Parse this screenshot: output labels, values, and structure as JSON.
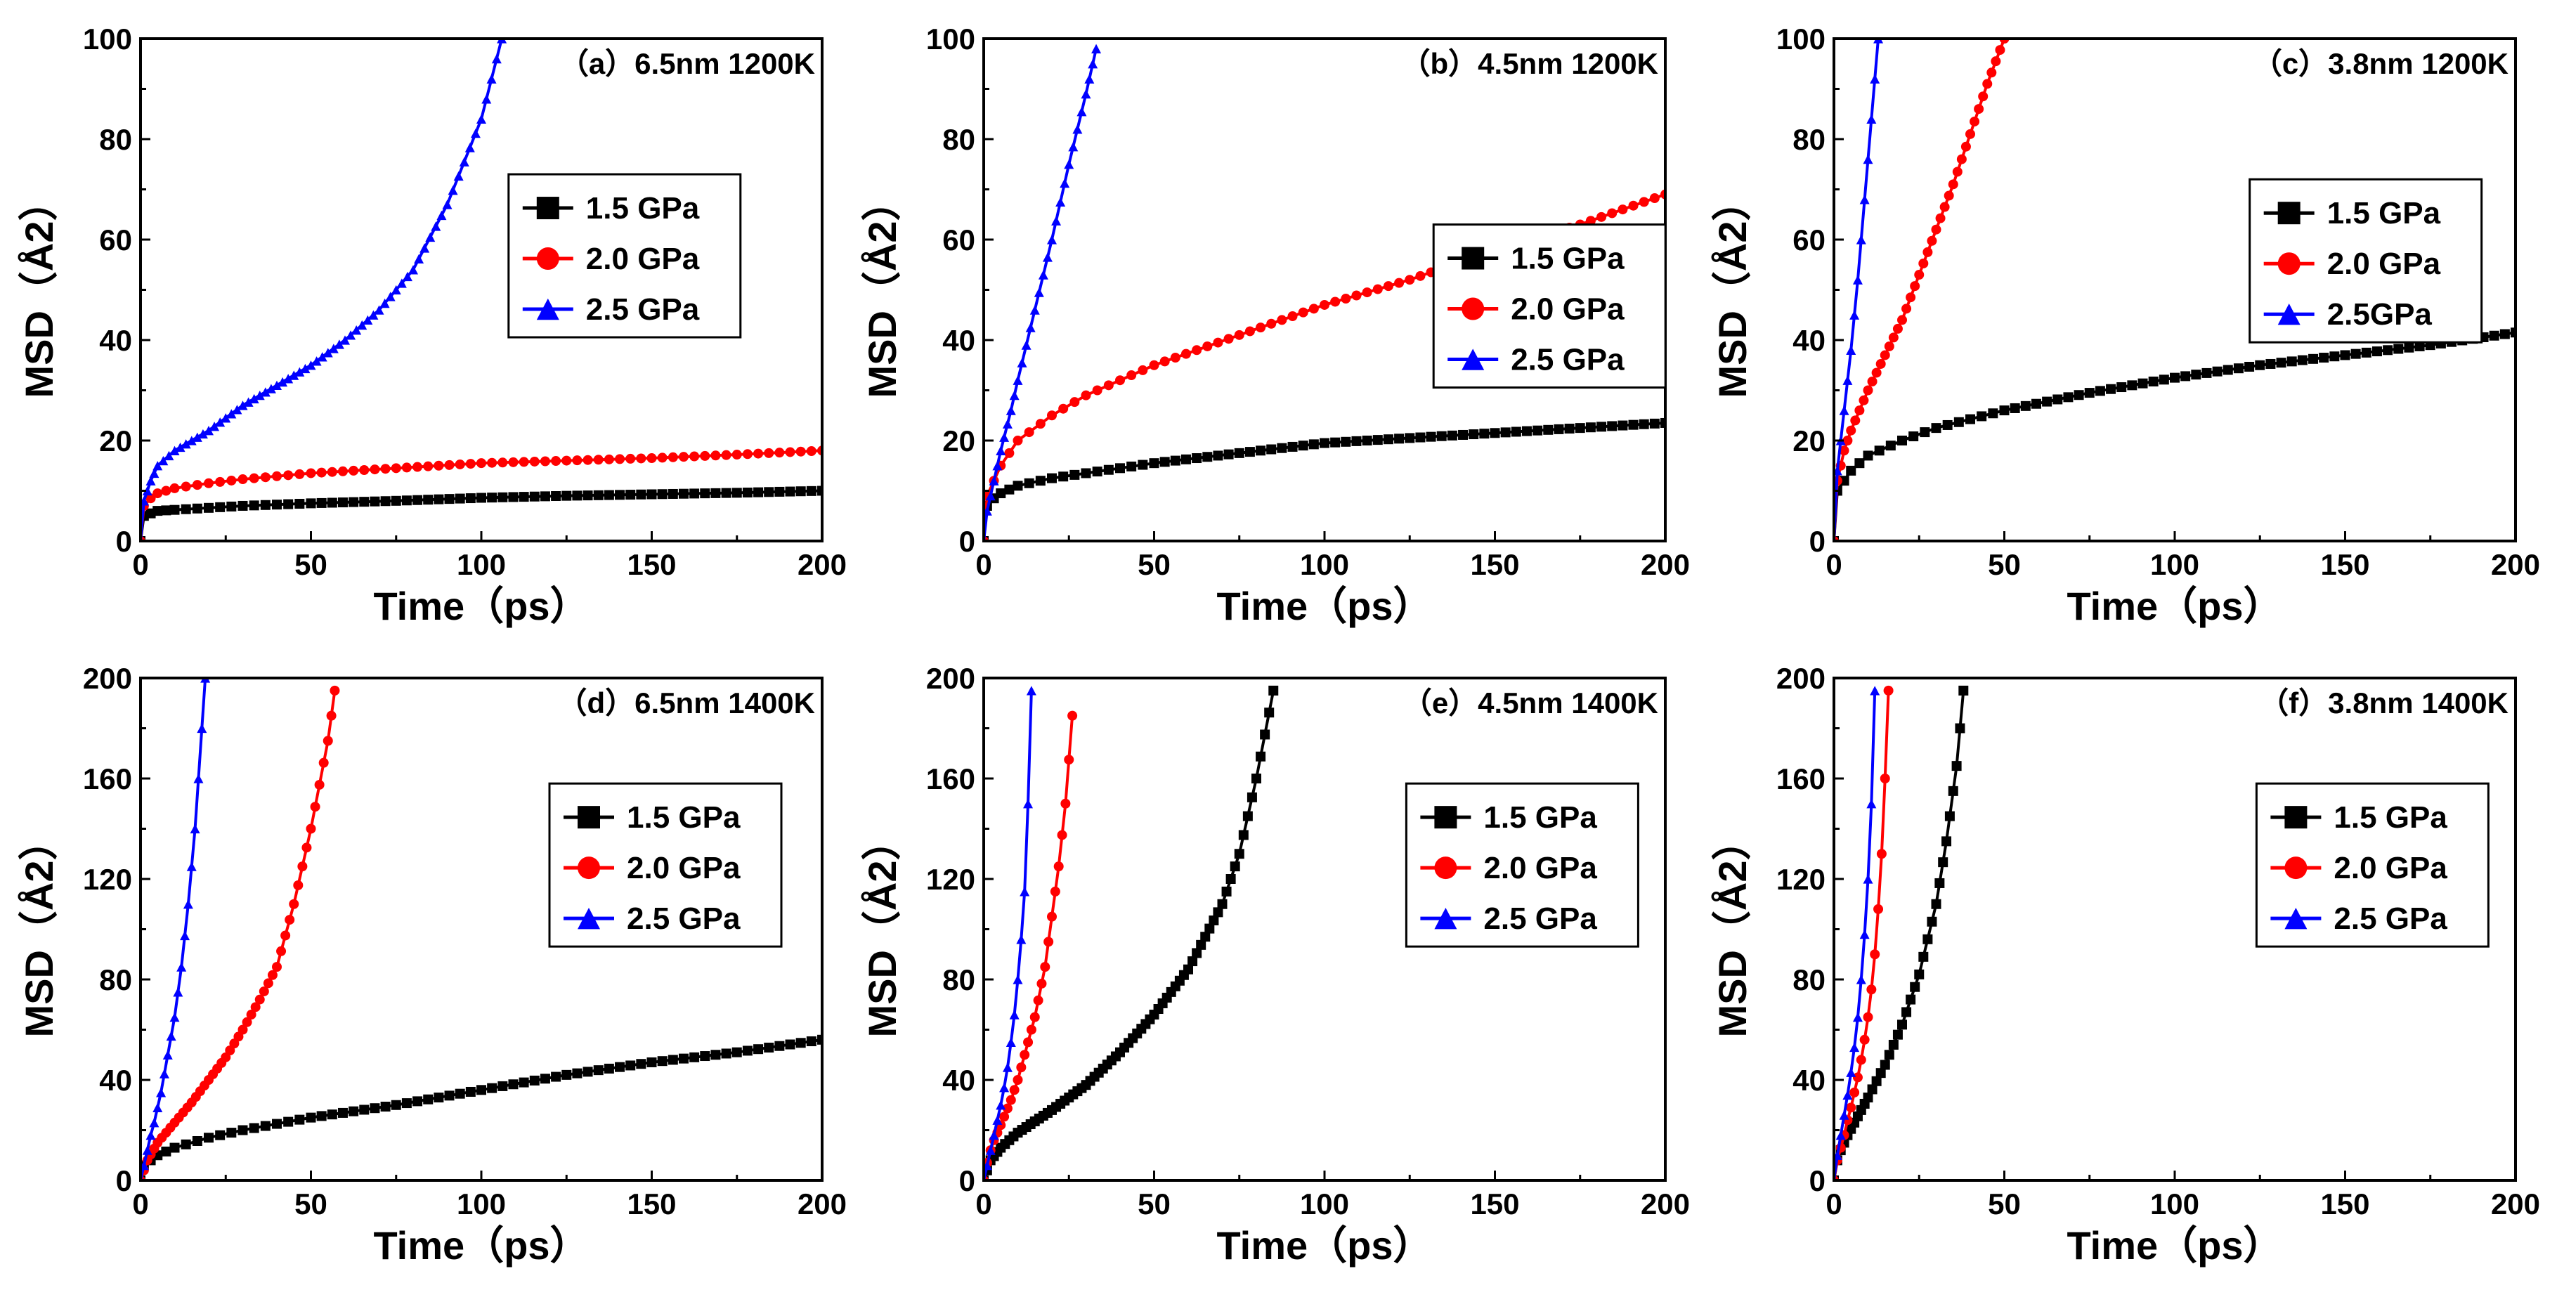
{
  "figure": {
    "background": "#ffffff"
  },
  "series_styles": {
    "1.5 GPa": {
      "color": "#000000",
      "marker": "square"
    },
    "2.0 GPa": {
      "color": "#ff0000",
      "marker": "circle"
    },
    "2.5 GPa": {
      "color": "#0000ff",
      "marker": "triangle"
    }
  },
  "chart_data": [
    {
      "type": "line",
      "title": "（a）6.5nm 1200K",
      "xlabel": "Time（ps）",
      "ylabel": "MSD（Å2）",
      "xlim": [
        0,
        200
      ],
      "ylim": [
        0,
        100
      ],
      "xticks": [
        0,
        50,
        100,
        150,
        200
      ],
      "yticks": [
        0,
        20,
        40,
        60,
        80,
        100
      ],
      "legend_position": "upper-middle",
      "series": [
        {
          "name": "1.5 GPa",
          "label": "1.5 GPa",
          "x": [
            0,
            1,
            3,
            5,
            10,
            20,
            30,
            50,
            75,
            100,
            125,
            150,
            175,
            200
          ],
          "y": [
            0,
            5,
            5.5,
            6,
            6.2,
            6.6,
            7,
            7.5,
            8,
            8.6,
            9,
            9.3,
            9.6,
            10
          ]
        },
        {
          "name": "2.0 GPa",
          "label": "2.0 GPa",
          "x": [
            0,
            1,
            3,
            5,
            10,
            20,
            30,
            50,
            75,
            100,
            125,
            150,
            175,
            200
          ],
          "y": [
            0,
            7,
            8.5,
            9.5,
            10.5,
            11.5,
            12.3,
            13.5,
            14.5,
            15.5,
            16,
            16.5,
            17.2,
            18
          ]
        },
        {
          "name": "2.5 GPa",
          "label": "2.5 GPa",
          "x": [
            0,
            1,
            3,
            5,
            10,
            15,
            20,
            30,
            40,
            50,
            60,
            70,
            80,
            90,
            100,
            106
          ],
          "y": [
            0,
            8,
            12,
            15,
            18,
            20,
            22,
            27,
            31,
            35,
            40,
            46,
            54,
            67,
            84,
            100
          ]
        }
      ]
    },
    {
      "type": "line",
      "title": "（b）4.5nm 1200K",
      "xlabel": "Time（ps）",
      "ylabel": "MSD（Å2）",
      "xlim": [
        0,
        200
      ],
      "ylim": [
        0,
        100
      ],
      "xticks": [
        0,
        50,
        100,
        150,
        200
      ],
      "yticks": [
        0,
        20,
        40,
        60,
        80,
        100
      ],
      "legend_position": "middle-right",
      "series": [
        {
          "name": "1.5 GPa",
          "label": "1.5 GPa",
          "x": [
            0,
            1,
            3,
            5,
            10,
            20,
            30,
            50,
            75,
            100,
            125,
            150,
            175,
            200
          ],
          "y": [
            0,
            7,
            8.5,
            9.5,
            11,
            12.5,
            13.5,
            15.5,
            17.5,
            19.5,
            20.5,
            21.5,
            22.5,
            23.5
          ]
        },
        {
          "name": "2.0 GPa",
          "label": "2.0 GPa",
          "x": [
            0,
            1,
            3,
            5,
            10,
            20,
            30,
            50,
            75,
            100,
            125,
            150,
            175,
            200
          ],
          "y": [
            0,
            9,
            12,
            15,
            20,
            25,
            29,
            35,
            41,
            47,
            52,
            58,
            63,
            69
          ]
        },
        {
          "name": "2.5 GPa",
          "label": "2.5 GPa",
          "x": [
            0,
            1,
            3,
            5,
            8,
            10,
            15,
            20,
            25,
            30,
            33
          ],
          "y": [
            0,
            6,
            12,
            18,
            26,
            32,
            46,
            60,
            75,
            89,
            98
          ]
        }
      ]
    },
    {
      "type": "line",
      "title": "（c）3.8nm 1200K",
      "xlabel": "Time（ps）",
      "ylabel": "MSD（Å2）",
      "xlim": [
        0,
        200
      ],
      "ylim": [
        0,
        100
      ],
      "xticks": [
        0,
        50,
        100,
        150,
        200
      ],
      "yticks": [
        0,
        20,
        40,
        60,
        80,
        100
      ],
      "legend_position": "middle-right",
      "series": [
        {
          "name": "1.5 GPa",
          "label": "1.5 GPa",
          "x": [
            0,
            1,
            3,
            5,
            10,
            20,
            30,
            50,
            75,
            100,
            125,
            150,
            175,
            200
          ],
          "y": [
            0,
            10,
            12,
            14,
            17,
            20,
            22.5,
            26,
            29.5,
            32.5,
            35,
            37,
            39,
            41.5
          ]
        },
        {
          "name": "2.0 GPa",
          "label": "2.0 GPa",
          "x": [
            0,
            1,
            3,
            5,
            10,
            15,
            20,
            25,
            30,
            35,
            40,
            45,
            50
          ],
          "y": [
            0,
            12,
            18,
            22,
            30,
            37,
            44,
            53,
            62,
            71,
            81,
            91,
            100
          ]
        },
        {
          "name": "2.5 GPa",
          "label": "2.5GPa",
          "x": [
            0,
            1,
            2,
            3,
            4,
            5,
            6,
            7,
            8,
            9,
            10,
            11,
            12,
            13
          ],
          "y": [
            0,
            14,
            20,
            26,
            32,
            38,
            45,
            52,
            60,
            68,
            76,
            84,
            92,
            100
          ]
        }
      ]
    },
    {
      "type": "line",
      "title": "（d）6.5nm 1400K",
      "xlabel": "Time（ps）",
      "ylabel": "MSD（Å2）",
      "xlim": [
        0,
        200
      ],
      "ylim": [
        0,
        200
      ],
      "xticks": [
        0,
        50,
        100,
        150,
        200
      ],
      "yticks": [
        0,
        40,
        80,
        120,
        160,
        200
      ],
      "legend_position": "upper-middle",
      "series": [
        {
          "name": "1.5 GPa",
          "label": "1.5 GPa",
          "x": [
            0,
            1,
            3,
            5,
            10,
            20,
            30,
            50,
            75,
            100,
            125,
            150,
            175,
            200
          ],
          "y": [
            0,
            6,
            8,
            10,
            13,
            17,
            20,
            25,
            30,
            36,
            42,
            47,
            51,
            56
          ]
        },
        {
          "name": "2.0 GPa",
          "label": "2.0 GPa",
          "x": [
            0,
            2,
            5,
            10,
            15,
            20,
            25,
            30,
            35,
            40,
            45,
            50,
            55,
            57
          ],
          "y": [
            0,
            8,
            15,
            23,
            31,
            40,
            49,
            60,
            72,
            85,
            110,
            140,
            175,
            195
          ]
        },
        {
          "name": "2.5 GPa",
          "label": "2.5 GPa",
          "x": [
            0,
            1,
            2,
            3,
            4,
            5,
            6,
            8,
            10,
            12,
            14,
            16,
            18,
            19
          ],
          "y": [
            0,
            6,
            12,
            18,
            23,
            29,
            35,
            50,
            65,
            85,
            110,
            140,
            180,
            200
          ]
        }
      ]
    },
    {
      "type": "line",
      "title": "（e）4.5nm 1400K",
      "xlabel": "Time（ps）",
      "ylabel": "MSD（Å2）",
      "xlim": [
        0,
        200
      ],
      "ylim": [
        0,
        200
      ],
      "xticks": [
        0,
        50,
        100,
        150,
        200
      ],
      "yticks": [
        0,
        40,
        80,
        120,
        160,
        200
      ],
      "legend_position": "upper-middle",
      "series": [
        {
          "name": "1.5 GPa",
          "label": "1.5 GPa",
          "x": [
            0,
            2,
            5,
            10,
            20,
            30,
            40,
            50,
            60,
            70,
            75,
            80,
            85
          ],
          "y": [
            0,
            8,
            13,
            19,
            28,
            38,
            51,
            66,
            84,
            110,
            130,
            160,
            195
          ]
        },
        {
          "name": "2.0 GPa",
          "label": "2.0 GPa",
          "x": [
            0,
            1,
            2,
            3,
            5,
            8,
            10,
            12,
            15,
            18,
            20,
            22,
            24,
            26
          ],
          "y": [
            0,
            7,
            12,
            16,
            22,
            32,
            40,
            50,
            65,
            85,
            105,
            125,
            150,
            185
          ]
        },
        {
          "name": "2.5 GPa",
          "label": "2.5 GPa",
          "x": [
            0,
            1,
            2,
            3,
            4,
            5,
            6,
            7,
            8,
            9,
            10,
            11,
            12,
            13,
            14
          ],
          "y": [
            0,
            6,
            12,
            18,
            24,
            30,
            37,
            45,
            55,
            66,
            80,
            96,
            115,
            150,
            195
          ]
        }
      ]
    },
    {
      "type": "line",
      "title": "（f）3.8nm 1400K",
      "xlabel": "Time（ps）",
      "ylabel": "MSD（Å2）",
      "xlim": [
        0,
        200
      ],
      "ylim": [
        0,
        200
      ],
      "xticks": [
        0,
        50,
        100,
        150,
        200
      ],
      "yticks": [
        0,
        40,
        80,
        120,
        160,
        200
      ],
      "legend_position": "upper-middle",
      "series": [
        {
          "name": "1.5 GPa",
          "label": "1.5 GPa",
          "x": [
            0,
            1,
            2,
            4,
            6,
            8,
            10,
            15,
            20,
            25,
            30,
            33,
            36,
            38
          ],
          "y": [
            0,
            8,
            12,
            18,
            23,
            28,
            33,
            46,
            62,
            82,
            110,
            135,
            165,
            195
          ]
        },
        {
          "name": "2.0 GPa",
          "label": "2.0 GPa",
          "x": [
            0,
            1,
            2,
            3,
            4,
            5,
            6,
            7,
            8,
            9,
            10,
            11,
            12,
            13,
            14,
            15,
            16
          ],
          "y": [
            0,
            8,
            13,
            18,
            24,
            29,
            35,
            41,
            48,
            56,
            65,
            76,
            90,
            108,
            130,
            160,
            195
          ]
        },
        {
          "name": "2.5 GPa",
          "label": "2.5 GPa",
          "x": [
            0,
            1,
            2,
            3,
            4,
            5,
            6,
            7,
            8,
            9,
            10,
            11,
            12
          ],
          "y": [
            0,
            10,
            18,
            26,
            34,
            43,
            53,
            65,
            80,
            98,
            120,
            150,
            195
          ]
        }
      ]
    }
  ]
}
